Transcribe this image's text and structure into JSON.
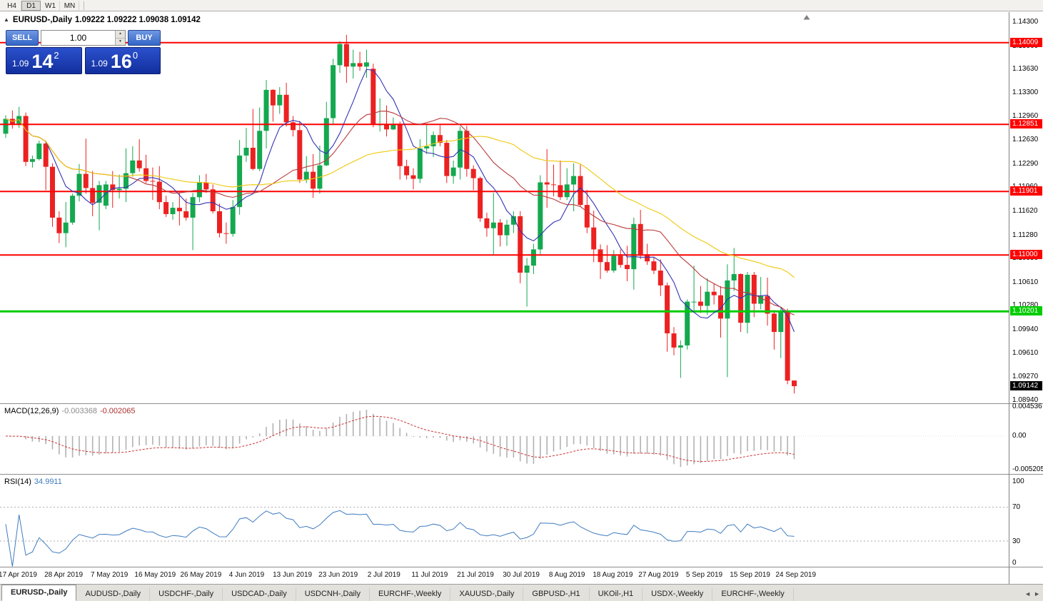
{
  "toolbar": {
    "timeframes": [
      {
        "label": "H4",
        "active": false
      },
      {
        "label": "D1",
        "active": true
      },
      {
        "label": "W1",
        "active": false
      },
      {
        "label": "MN",
        "active": false
      }
    ]
  },
  "chart": {
    "symbol": "EURUSD-,Daily",
    "ohlc_text": "1.09222 1.09222 1.09038 1.09142",
    "colors": {
      "up": "#14A84F",
      "down": "#EC2121"
    },
    "moving_averages": [
      {
        "period": 7,
        "color": "#3333B4"
      },
      {
        "period": 19,
        "color": "#B83A3A"
      },
      {
        "period": 38,
        "color": "#EFC80C"
      }
    ],
    "hlines": [
      {
        "value": 1.14009,
        "label": "1.14009",
        "color": "#FE0000",
        "width": 2
      },
      {
        "value": 1.12851,
        "label": "1.12851",
        "color": "#FE0000",
        "width": 2
      },
      {
        "value": 1.11901,
        "label": "1.11901",
        "color": "#FE0000",
        "width": 2
      },
      {
        "value": 1.11,
        "label": "1.11000",
        "color": "#FE0000",
        "width": 2
      },
      {
        "value": 1.10201,
        "label": "1.10201",
        "color": "#00CC00",
        "width": 3
      }
    ],
    "current_price": {
      "value": 1.09142,
      "label": "1.09142",
      "bg": "#000000"
    },
    "candles": [
      [
        1.1272,
        1.1298,
        1.1266,
        1.1293
      ],
      [
        1.1293,
        1.1305,
        1.1279,
        1.1286
      ],
      [
        1.1286,
        1.131,
        1.128,
        1.1297
      ],
      [
        1.1297,
        1.1302,
        1.1226,
        1.1232
      ],
      [
        1.1232,
        1.1241,
        1.1224,
        1.1236
      ],
      [
        1.1236,
        1.1262,
        1.1234,
        1.1258
      ],
      [
        1.1258,
        1.1262,
        1.1192,
        1.1225
      ],
      [
        1.1225,
        1.123,
        1.114,
        1.1153
      ],
      [
        1.1153,
        1.1162,
        1.1117,
        1.1131
      ],
      [
        1.1131,
        1.1175,
        1.1111,
        1.1146
      ],
      [
        1.1146,
        1.1187,
        1.1143,
        1.1184
      ],
      [
        1.1184,
        1.1229,
        1.1176,
        1.1215
      ],
      [
        1.1215,
        1.1265,
        1.1187,
        1.1195
      ],
      [
        1.1195,
        1.1219,
        1.1155,
        1.1174
      ],
      [
        1.1174,
        1.1205,
        1.1135,
        1.1199
      ],
      [
        1.117,
        1.1205,
        1.1165,
        1.12
      ],
      [
        1.12,
        1.1219,
        1.1167,
        1.1192
      ],
      [
        1.1192,
        1.1214,
        1.118,
        1.1194
      ],
      [
        1.1194,
        1.1251,
        1.1175,
        1.1216
      ],
      [
        1.1216,
        1.1254,
        1.1211,
        1.1234
      ],
      [
        1.1234,
        1.1264,
        1.1218,
        1.1223
      ],
      [
        1.1223,
        1.1242,
        1.1202,
        1.1205
      ],
      [
        1.1205,
        1.1224,
        1.1178,
        1.1204
      ],
      [
        1.1204,
        1.1226,
        1.1165,
        1.1175
      ],
      [
        1.1175,
        1.1184,
        1.1154,
        1.1158
      ],
      [
        1.1158,
        1.1175,
        1.115,
        1.1167
      ],
      [
        1.1167,
        1.1188,
        1.1142,
        1.1162
      ],
      [
        1.1162,
        1.118,
        1.1149,
        1.1153
      ],
      [
        1.1153,
        1.1188,
        1.1107,
        1.1182
      ],
      [
        1.1182,
        1.1213,
        1.1175,
        1.1203
      ],
      [
        1.1203,
        1.1215,
        1.1188,
        1.1193
      ],
      [
        1.1193,
        1.12,
        1.1159,
        1.1162
      ],
      [
        1.1162,
        1.1173,
        1.1125,
        1.1131
      ],
      [
        1.1131,
        1.1146,
        1.1116,
        1.113
      ],
      [
        1.113,
        1.1178,
        1.1126,
        1.1168
      ],
      [
        1.1168,
        1.1263,
        1.1157,
        1.1241
      ],
      [
        1.1241,
        1.128,
        1.1232,
        1.1252
      ],
      [
        1.1252,
        1.1307,
        1.122,
        1.1222
      ],
      [
        1.1222,
        1.1309,
        1.1219,
        1.1276
      ],
      [
        1.1276,
        1.1348,
        1.1251,
        1.1334
      ],
      [
        1.1334,
        1.1335,
        1.1289,
        1.1312
      ],
      [
        1.1312,
        1.1338,
        1.13,
        1.1327
      ],
      [
        1.1327,
        1.1344,
        1.1282,
        1.1288
      ],
      [
        1.1288,
        1.1297,
        1.1268,
        1.1277
      ],
      [
        1.1277,
        1.129,
        1.1202,
        1.1207
      ],
      [
        1.1207,
        1.124,
        1.1202,
        1.1218
      ],
      [
        1.1218,
        1.1243,
        1.1181,
        1.1194
      ],
      [
        1.1194,
        1.1255,
        1.1187,
        1.1227
      ],
      [
        1.1227,
        1.1317,
        1.1226,
        1.1294
      ],
      [
        1.1294,
        1.1378,
        1.1286,
        1.1369
      ],
      [
        1.1369,
        1.1403,
        1.1358,
        1.1399
      ],
      [
        1.1399,
        1.1412,
        1.1344,
        1.1367
      ],
      [
        1.1367,
        1.1391,
        1.135,
        1.1372
      ],
      [
        1.1372,
        1.1388,
        1.1361,
        1.1367
      ],
      [
        1.1367,
        1.1391,
        1.1351,
        1.1373
      ],
      [
        1.1364,
        1.1371,
        1.1281,
        1.1285
      ],
      [
        1.1285,
        1.1322,
        1.1275,
        1.1285
      ],
      [
        1.1285,
        1.1312,
        1.1268,
        1.1278
      ],
      [
        1.1278,
        1.1295,
        1.1277,
        1.1285
      ],
      [
        1.1285,
        1.1289,
        1.1207,
        1.1226
      ],
      [
        1.1226,
        1.1235,
        1.1207,
        1.1213
      ],
      [
        1.1213,
        1.1223,
        1.1193,
        1.1208
      ],
      [
        1.1208,
        1.1264,
        1.1202,
        1.1251
      ],
      [
        1.1251,
        1.1286,
        1.1243,
        1.1254
      ],
      [
        1.1254,
        1.1275,
        1.1239,
        1.127
      ],
      [
        1.127,
        1.1284,
        1.1254,
        1.1259
      ],
      [
        1.1259,
        1.1263,
        1.1202,
        1.1212
      ],
      [
        1.1212,
        1.1234,
        1.1201,
        1.1224
      ],
      [
        1.1224,
        1.1282,
        1.1207,
        1.1276
      ],
      [
        1.1276,
        1.1283,
        1.1211,
        1.1222
      ],
      [
        1.1222,
        1.1227,
        1.1192,
        1.1209
      ],
      [
        1.1209,
        1.1211,
        1.1147,
        1.1152
      ],
      [
        1.1152,
        1.116,
        1.1126,
        1.1138
      ],
      [
        1.1138,
        1.1188,
        1.1101,
        1.1146
      ],
      [
        1.1146,
        1.1151,
        1.1112,
        1.1128
      ],
      [
        1.1128,
        1.115,
        1.1113,
        1.1143
      ],
      [
        1.1143,
        1.1162,
        1.1131,
        1.1155
      ],
      [
        1.1155,
        1.1162,
        1.106,
        1.1075
      ],
      [
        1.1075,
        1.1096,
        1.1027,
        1.1085
      ],
      [
        1.1085,
        1.1116,
        1.1073,
        1.1108
      ],
      [
        1.1108,
        1.1213,
        1.1101,
        1.1203
      ],
      [
        1.1203,
        1.125,
        1.1167,
        1.12
      ],
      [
        1.12,
        1.1228,
        1.1183,
        1.1199
      ],
      [
        1.1199,
        1.1234,
        1.1178,
        1.1182
      ],
      [
        1.1182,
        1.1223,
        1.1178,
        1.12
      ],
      [
        1.12,
        1.123,
        1.1162,
        1.1212
      ],
      [
        1.1212,
        1.1228,
        1.1168,
        1.1171
      ],
      [
        1.1171,
        1.1192,
        1.1131,
        1.1139
      ],
      [
        1.1139,
        1.1163,
        1.109,
        1.1108
      ],
      [
        1.1108,
        1.1115,
        1.1066,
        1.109
      ],
      [
        1.109,
        1.1114,
        1.1075,
        1.1078
      ],
      [
        1.1078,
        1.1107,
        1.1075,
        1.1099
      ],
      [
        1.1099,
        1.1108,
        1.1082,
        1.1086
      ],
      [
        1.1086,
        1.1113,
        1.1063,
        1.108
      ],
      [
        1.108,
        1.1153,
        1.1051,
        1.1144
      ],
      [
        1.1144,
        1.1164,
        1.1094,
        1.1101
      ],
      [
        1.1101,
        1.1116,
        1.1086,
        1.1091
      ],
      [
        1.1091,
        1.1097,
        1.1073,
        1.1078
      ],
      [
        1.1078,
        1.1094,
        1.1042,
        1.1057
      ],
      [
        1.1057,
        1.1061,
        1.0963,
        1.0989
      ],
      [
        1.0989,
        1.0998,
        1.0958,
        1.0969
      ],
      [
        1.0969,
        1.0979,
        1.0926,
        1.0972
      ],
      [
        1.0972,
        1.1037,
        1.0966,
        1.1034
      ],
      [
        1.1034,
        1.1085,
        1.1022,
        1.1034
      ],
      [
        1.1034,
        1.1056,
        1.1018,
        1.1028
      ],
      [
        1.1028,
        1.1067,
        1.1015,
        1.1048
      ],
      [
        1.1048,
        1.1059,
        1.103,
        1.1043
      ],
      [
        1.1043,
        1.1056,
        1.0983,
        1.101
      ],
      [
        1.101,
        1.1087,
        1.0927,
        1.1064
      ],
      [
        1.1064,
        1.111,
        1.1049,
        1.1073
      ],
      [
        1.1073,
        1.1074,
        1.0991,
        1.1004
      ],
      [
        1.1004,
        1.1076,
        1.0989,
        1.1072
      ],
      [
        1.1072,
        1.1076,
        1.1012,
        1.1031
      ],
      [
        1.1031,
        1.1069,
        1.1023,
        1.1042
      ],
      [
        1.1042,
        1.1068,
        1.1,
        1.1017
      ],
      [
        1.1017,
        1.1022,
        1.0966,
        1.0991
      ],
      [
        1.0991,
        1.1024,
        1.0954,
        1.1021
      ],
      [
        1.1021,
        1.1024,
        1.0917,
        1.0922
      ],
      [
        1.09222,
        1.09222,
        1.09038,
        1.09142
      ]
    ]
  },
  "price_axis": {
    "ticks": [
      "1.14300",
      "1.13960",
      "1.13630",
      "1.13300",
      "1.12960",
      "1.12630",
      "1.12290",
      "1.11960",
      "1.11620",
      "1.11280",
      "1.10950",
      "1.10610",
      "1.10280",
      "1.09940",
      "1.09610",
      "1.09270",
      "1.08940"
    ]
  },
  "time_axis": {
    "labels": [
      "17 Apr 2019",
      "28 Apr 2019",
      "7 May 2019",
      "16 May 2019",
      "26 May 2019",
      "4 Jun 2019",
      "13 Jun 2019",
      "23 Jun 2019",
      "2 Jul 2019",
      "11 Jul 2019",
      "21 Jul 2019",
      "30 Jul 2019",
      "8 Aug 2019",
      "18 Aug 2019",
      "27 Aug 2019",
      "5 Sep 2019",
      "15 Sep 2019",
      "24 Sep 2019"
    ]
  },
  "trade_panel": {
    "sell_label": "SELL",
    "buy_label": "BUY",
    "volume": "1.00",
    "sell_price": {
      "prefix": "1.09",
      "big": "14",
      "sup": "2"
    },
    "buy_price": {
      "prefix": "1.09",
      "big": "16",
      "sup": "0"
    }
  },
  "macd": {
    "name": "MACD(12,26,9)",
    "value": "-0.003368",
    "signal": "-0.002065",
    "fast": 12,
    "slow": 26,
    "smooth": 9,
    "axis_labels": [
      "0.004536",
      "0.00",
      "-0.005205"
    ],
    "bar_color": "#B2B2B2",
    "signal_color": "#CC3333"
  },
  "rsi": {
    "name": "RSI(14)",
    "value": "34.9911",
    "period": 14,
    "color": "#3E7BBF",
    "levels": [
      70,
      30
    ],
    "axis_labels": [
      "100",
      "70",
      "30",
      "0"
    ]
  },
  "tabs": [
    {
      "label": "EURUSD-,Daily",
      "active": true
    },
    {
      "label": "AUDUSD-,Daily",
      "active": false
    },
    {
      "label": "USDCHF-,Daily",
      "active": false
    },
    {
      "label": "USDCAD-,Daily",
      "active": false
    },
    {
      "label": "USDCNH-,Daily",
      "active": false
    },
    {
      "label": "EURCHF-,Weekly",
      "active": false
    },
    {
      "label": "XAUUSD-,Daily",
      "active": false
    },
    {
      "label": "GBPUSD-,H1",
      "active": false
    },
    {
      "label": "UKOil-,H1",
      "active": false
    },
    {
      "label": "USDX-,Weekly",
      "active": false
    },
    {
      "label": "EURCHF-,Weekly",
      "active": false
    }
  ]
}
